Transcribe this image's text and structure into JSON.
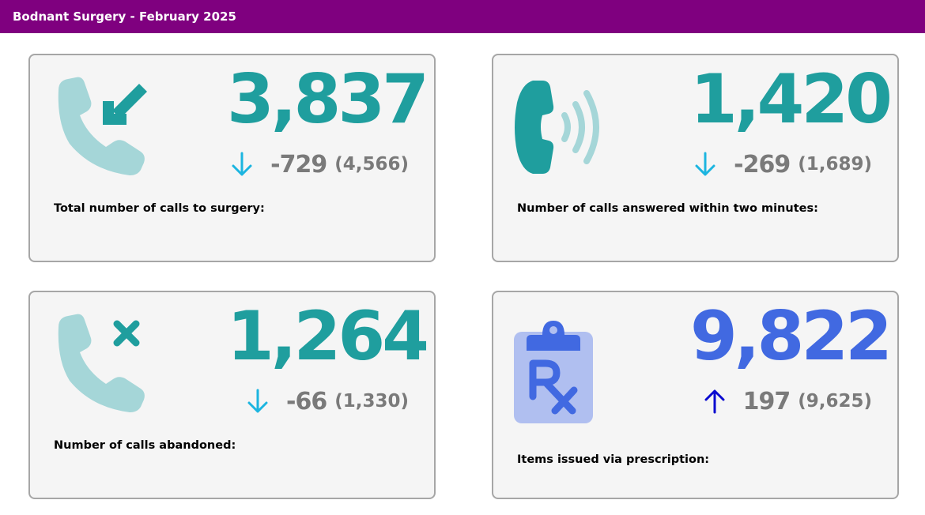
{
  "header": {
    "title": "Bodnant Surgery - February 2025"
  },
  "colors": {
    "header_bg": "#7f007f",
    "teal": "#1f9e9e",
    "light_teal": "#a5d6d8",
    "blue": "#4169e1",
    "light_blue": "#b0bff0",
    "arrow_down": "#1cb5e0",
    "arrow_up": "#0a0ad0",
    "muted_text": "#7a7a7a"
  },
  "cards": [
    {
      "icon": "incoming-call-icon",
      "value": "3,837",
      "trend": "down",
      "delta": "-729",
      "previous": "(4,566)",
      "caption": "Total number of calls to surgery:"
    },
    {
      "icon": "ringing-phone-icon",
      "value": "1,420",
      "trend": "down",
      "delta": "-269",
      "previous": "(1,689)",
      "caption": "Number of calls answered within two minutes:"
    },
    {
      "icon": "abandoned-call-icon",
      "value": "1,264",
      "trend": "down",
      "delta": "-66",
      "previous": "(1,330)",
      "caption": "Number of calls abandoned:"
    },
    {
      "icon": "prescription-clipboard-icon",
      "value": "9,822",
      "trend": "up",
      "delta": "197",
      "previous": "(9,625)",
      "caption": "Items issued via prescription:"
    }
  ]
}
